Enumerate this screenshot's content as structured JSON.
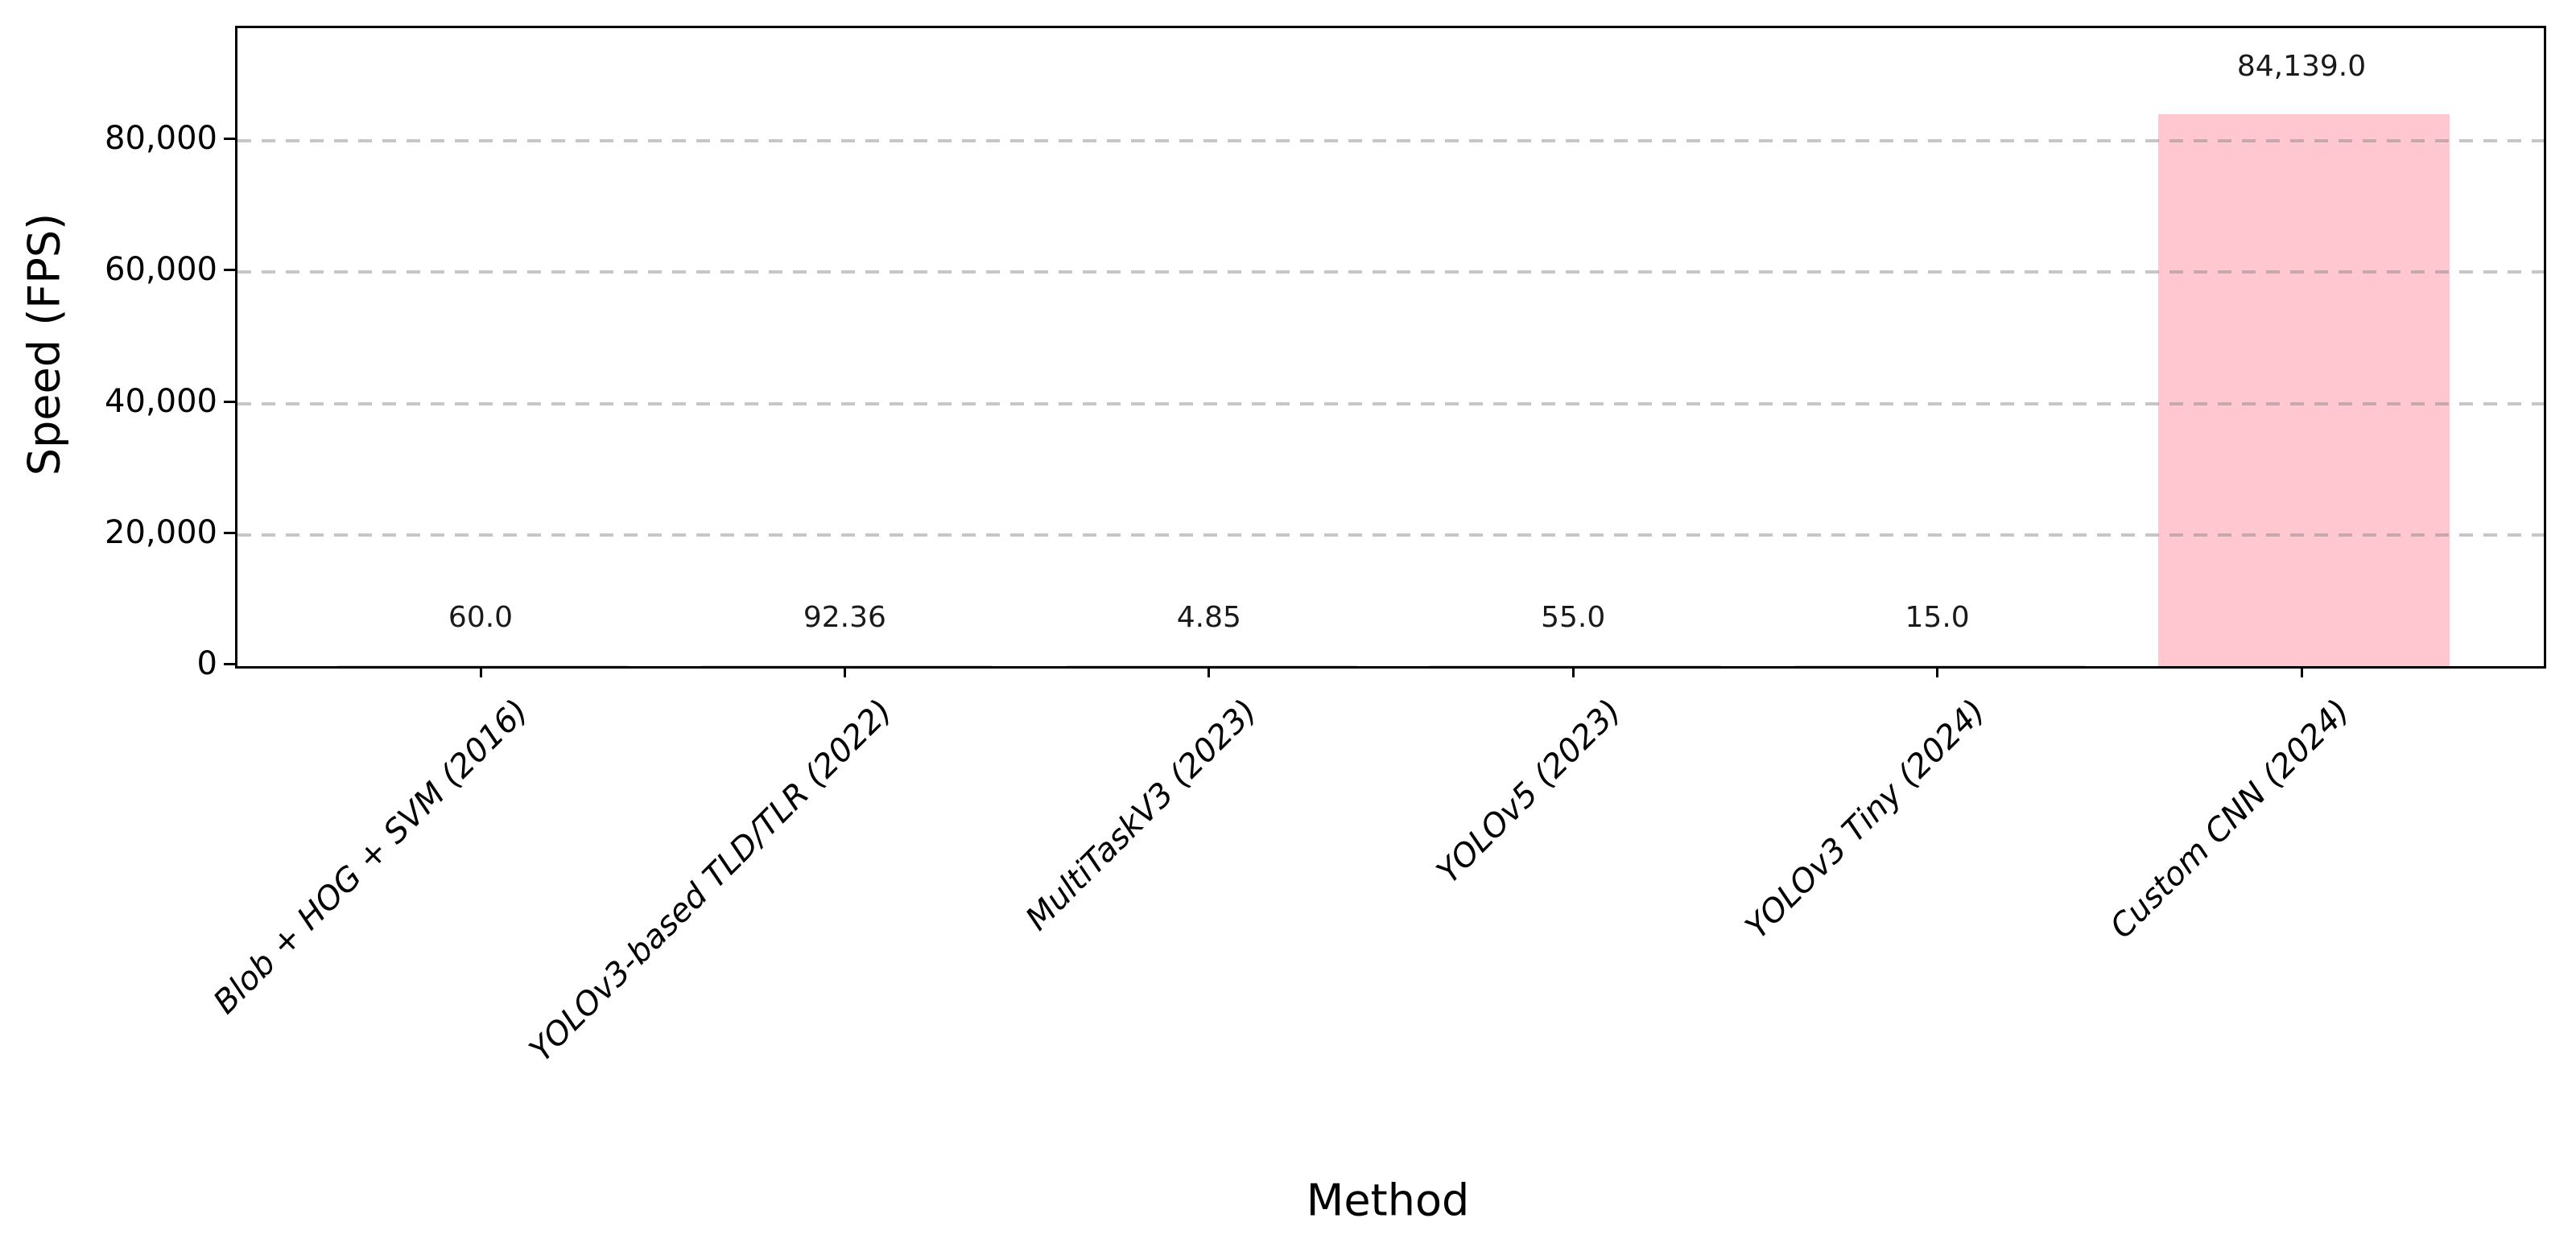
{
  "chart_data": {
    "type": "bar",
    "title": "",
    "xlabel": "Method",
    "ylabel": "Speed (FPS)",
    "categories": [
      "Blob + HOG + SVM (2016)",
      "YOLOv3-based TLD/TLR (2022)",
      "MultiTaskV3 (2023)",
      "YOLOv5 (2023)",
      "YOLOv3 Tiny (2024)",
      "Custom CNN (2024)"
    ],
    "values": [
      60.0,
      92.36,
      4.85,
      55.0,
      15.0,
      84139.0
    ],
    "value_labels": [
      "60.0",
      "92.36",
      "4.85",
      "55.0",
      "15.0",
      "84,139.0"
    ],
    "yticks": [
      {
        "value": 0,
        "label": "0"
      },
      {
        "value": 20000,
        "label": "20,000"
      },
      {
        "value": 40000,
        "label": "40,000"
      },
      {
        "value": 60000,
        "label": "60,000"
      },
      {
        "value": 80000,
        "label": "80,000"
      }
    ],
    "ylim": [
      0,
      97200
    ],
    "grid": "horizontal-dashed",
    "legend_position": "none",
    "bar_color": "#ffc8d1",
    "grid_color": "#c8c8c8",
    "axis_color": "#000000",
    "xtick_label_rotation_deg": 45,
    "xtick_label_style": "italic"
  }
}
